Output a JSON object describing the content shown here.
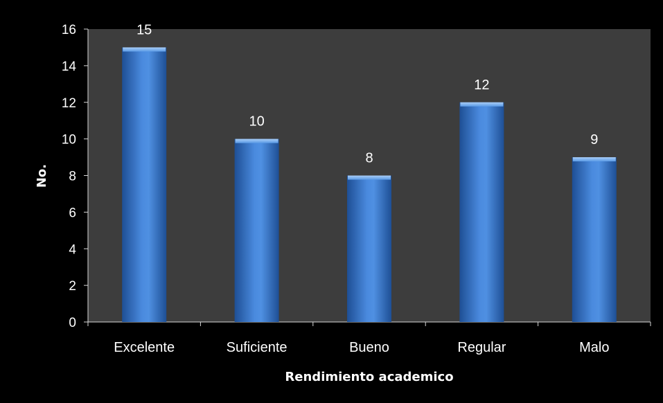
{
  "chart_data": {
    "type": "bar",
    "categories": [
      "Excelente",
      "Suficiente",
      "Bueno",
      "Regular",
      "Malo"
    ],
    "values": [
      15,
      10,
      8,
      12,
      9
    ],
    "title": "",
    "xlabel": "Rendimiento academico",
    "ylabel": "No.",
    "ylim": [
      0,
      16
    ],
    "yticks": [
      "0",
      "2",
      "4",
      "6",
      "8",
      "10",
      "12",
      "14",
      "16"
    ],
    "grid": false,
    "legend": "none",
    "colors": {
      "page_background": "#000000",
      "plot_background": "#3d3d3d",
      "bar_light": "#5b9be6",
      "bar_mid": "#3f7fd2",
      "bar_dark": "#1e4f95",
      "text": "#ffffff"
    }
  }
}
